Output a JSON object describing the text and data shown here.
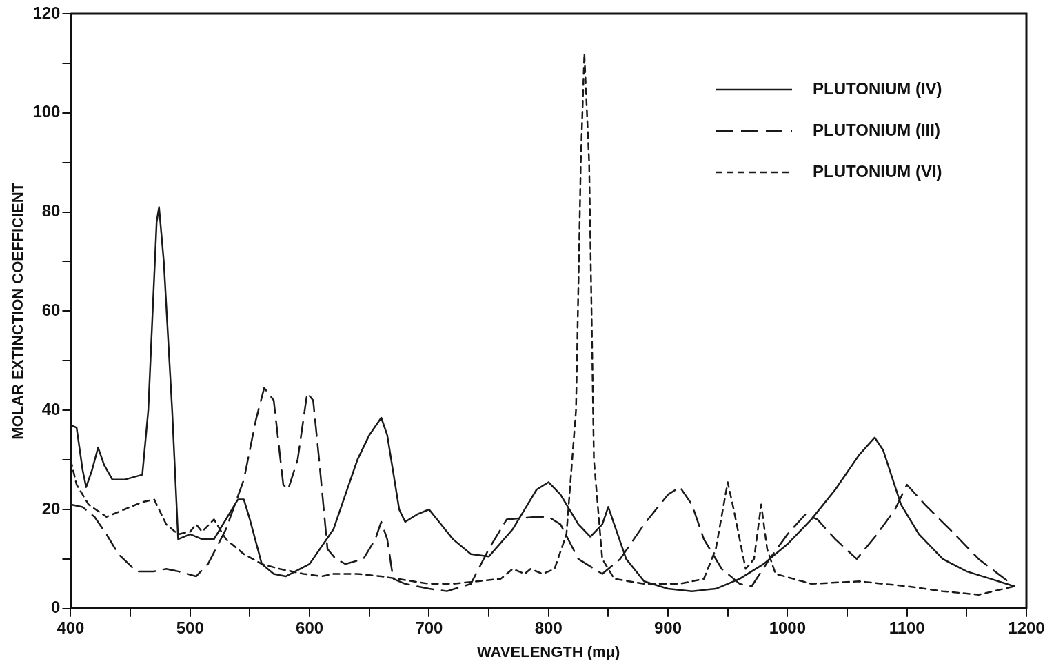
{
  "chart_data": {
    "type": "line",
    "xlabel": "WAVELENGTH (mμ)",
    "ylabel": "MOLAR EXTINCTION COEFFICIENT",
    "xlim": [
      400,
      1200
    ],
    "xticks": [
      400,
      {
        "value": 450,
        "label": null
      },
      500,
      {
        "value": 550,
        "label": null
      },
      600,
      {
        "value": 650,
        "label": null
      },
      700,
      {
        "value": 750,
        "label": null
      },
      800,
      {
        "value": 850,
        "label": null
      },
      900,
      {
        "value": 950,
        "label": null
      },
      1000,
      {
        "value": 1050,
        "label": null
      },
      1100,
      {
        "value": 1150,
        "label": null
      },
      1200
    ],
    "ylim": [
      0,
      120
    ],
    "yticks": [
      0,
      {
        "value": 10,
        "label": null
      },
      20,
      {
        "value": 30,
        "label": null
      },
      40,
      {
        "value": 50,
        "label": null
      },
      60,
      {
        "value": 70,
        "label": null
      },
      80,
      {
        "value": 90,
        "label": null
      },
      100,
      {
        "value": 110,
        "label": null
      },
      120
    ],
    "grid": false,
    "legend": "top right",
    "marker": "none",
    "series": [
      {
        "name": "PLUTONIUM (IV)",
        "color": "#1a1a1a",
        "line_style": "solid",
        "x": [
          400,
          405,
          410,
          413,
          418,
          423,
          428,
          435,
          445,
          460,
          465,
          472,
          474,
          478,
          485,
          490,
          495,
          500,
          510,
          520,
          530,
          540,
          545,
          550,
          560,
          570,
          580,
          600,
          620,
          640,
          650,
          660,
          665,
          675,
          680,
          690,
          700,
          710,
          720,
          735,
          750,
          770,
          790,
          800,
          810,
          825,
          835,
          845,
          850,
          855,
          865,
          880,
          900,
          920,
          940,
          960,
          980,
          1000,
          1020,
          1040,
          1060,
          1073,
          1080,
          1095,
          1110,
          1130,
          1150,
          1170,
          1190
        ],
        "values": [
          37,
          36.5,
          28,
          24.5,
          28,
          32.5,
          29,
          26,
          26,
          27,
          40,
          78,
          81,
          70,
          40,
          14,
          14.5,
          15,
          14,
          14,
          18,
          22,
          22,
          18,
          9,
          7,
          6.5,
          9,
          16,
          30,
          35,
          38.5,
          35,
          20,
          17.5,
          19,
          20,
          17,
          14,
          11,
          10.5,
          16,
          24,
          25.5,
          23,
          17,
          14.5,
          17,
          20.5,
          17,
          10,
          5.5,
          4,
          3.5,
          4,
          6,
          9,
          13,
          18,
          24,
          31,
          34.5,
          32,
          21,
          15,
          10,
          7.5,
          6,
          4.5
        ]
      },
      {
        "name": "PLUTONIUM (III)",
        "color": "#1a1a1a",
        "line_style": "dashed",
        "x": [
          400,
          410,
          420,
          430,
          440,
          455,
          470,
          480,
          490,
          505,
          515,
          530,
          545,
          555,
          562,
          570,
          578,
          582,
          590,
          598,
          603,
          608,
          615,
          622,
          630,
          645,
          655,
          660,
          665,
          670,
          680,
          700,
          715,
          735,
          750,
          765,
          790,
          800,
          810,
          825,
          845,
          860,
          880,
          900,
          910,
          920,
          930,
          945,
          960,
          970,
          985,
          1000,
          1015,
          1025,
          1040,
          1058,
          1075,
          1090,
          1100,
          1115,
          1140,
          1160,
          1190
        ],
        "values": [
          21,
          20.5,
          18.5,
          15,
          11,
          7.5,
          7.5,
          8,
          7.5,
          6.5,
          9,
          16,
          26,
          38,
          44.5,
          42,
          25,
          24,
          30,
          43.5,
          42,
          30,
          12,
          10,
          9,
          10,
          14,
          17.5,
          14,
          6,
          5,
          4,
          3.5,
          5,
          12,
          18,
          18.5,
          18.5,
          17,
          10,
          7,
          10,
          17,
          23,
          24.5,
          21,
          14,
          8,
          5,
          4.5,
          10,
          15,
          19,
          18,
          14,
          10,
          15,
          20,
          25,
          21,
          15,
          10,
          4.5
        ]
      },
      {
        "name": "PLUTONIUM (VI)",
        "color": "#1a1a1a",
        "line_style": "dotted",
        "x": [
          400,
          405,
          415,
          430,
          445,
          460,
          470,
          480,
          490,
          500,
          505,
          510,
          520,
          530,
          545,
          560,
          575,
          595,
          610,
          620,
          640,
          660,
          700,
          720,
          760,
          770,
          780,
          785,
          795,
          805,
          815,
          823,
          827,
          830,
          834,
          838,
          845,
          855,
          880,
          910,
          930,
          940,
          950,
          955,
          965,
          972,
          978,
          983,
          990,
          1020,
          1060,
          1100,
          1130,
          1160,
          1190
        ],
        "values": [
          30,
          25,
          21,
          18.5,
          20,
          21.5,
          22,
          17,
          15,
          15.5,
          17,
          15.5,
          18,
          14,
          11,
          9,
          8,
          7,
          6.5,
          7,
          7,
          6.5,
          5,
          5,
          6,
          8,
          7,
          8,
          7,
          8,
          15,
          40,
          90,
          112,
          90,
          30,
          10,
          6,
          5,
          5,
          6,
          12,
          25.5,
          20,
          8,
          10,
          21,
          12,
          7,
          5,
          5.5,
          4.5,
          3.5,
          2.8,
          4.5
        ]
      }
    ]
  }
}
